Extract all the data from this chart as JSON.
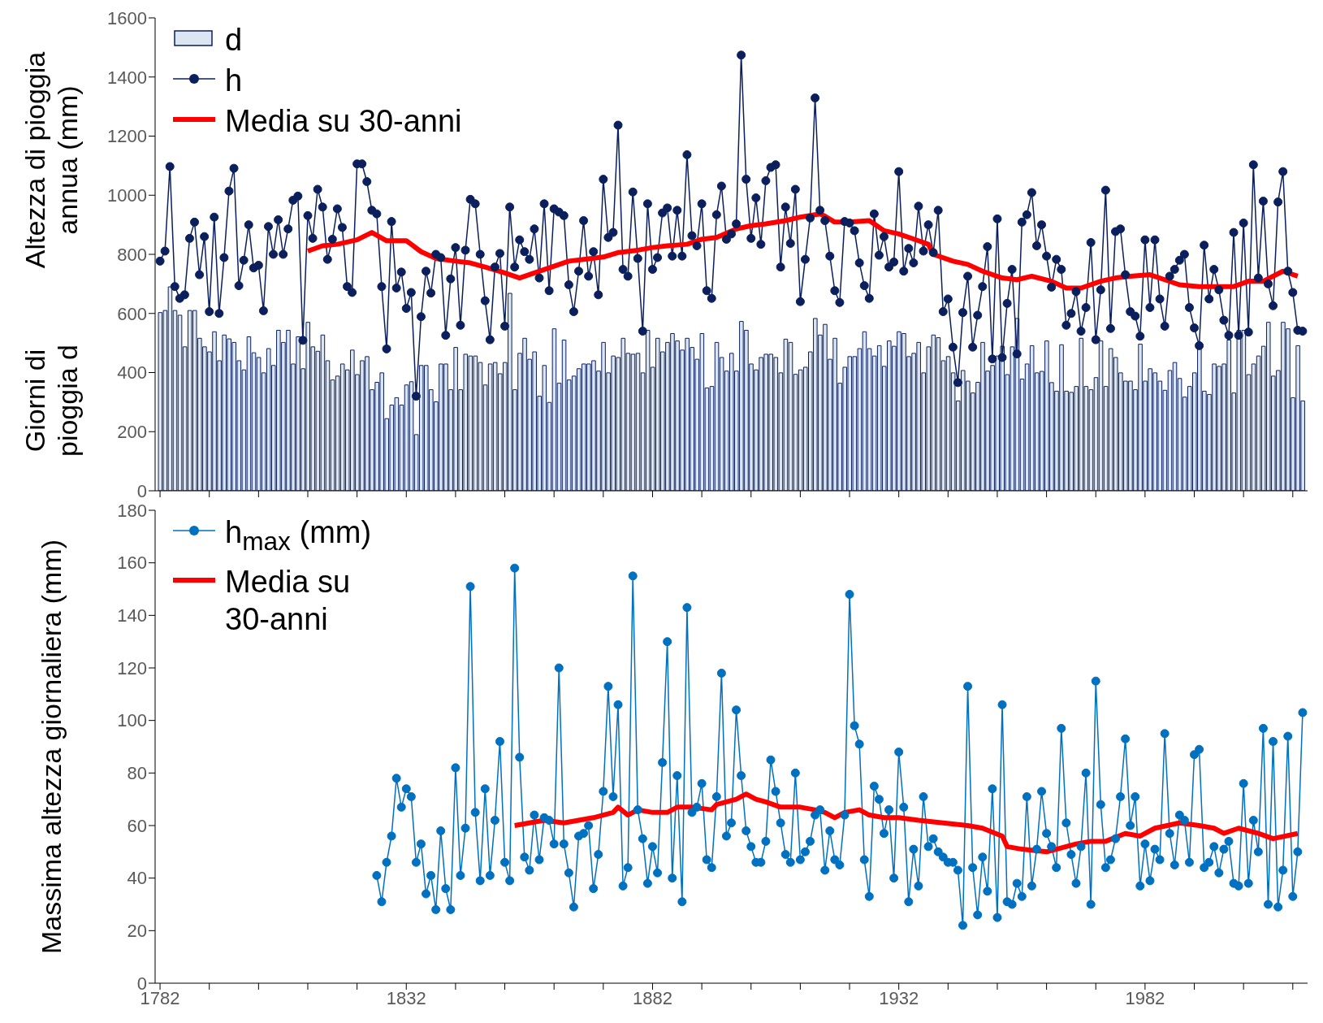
{
  "chart_data": [
    {
      "type": "bar",
      "ylabel": "Altezza di pioggia annua (mm)",
      "annotations": [
        "Giorni di pioggia d"
      ],
      "ylim": [
        0,
        1600
      ],
      "yticks": [
        0,
        200,
        400,
        600,
        800,
        1000,
        1200,
        1400,
        1600
      ],
      "xlim": [
        1781,
        2015
      ],
      "xticks": [
        1782,
        {
          "value": 1792,
          "label": null
        },
        {
          "value": 1802,
          "label": null
        },
        {
          "value": 1812,
          "label": null
        },
        {
          "value": 1822,
          "label": null
        },
        1832,
        {
          "value": 1842,
          "label": null
        },
        {
          "value": 1852,
          "label": null
        },
        {
          "value": 1862,
          "label": null
        },
        {
          "value": 1872,
          "label": null
        },
        1882,
        {
          "value": 1892,
          "label": null
        },
        {
          "value": 1902,
          "label": null
        },
        {
          "value": 1912,
          "label": null
        },
        {
          "value": 1922,
          "label": null
        },
        1932,
        {
          "value": 1942,
          "label": null
        },
        {
          "value": 1952,
          "label": null
        },
        {
          "value": 1962,
          "label": null
        },
        {
          "value": 1972,
          "label": null
        },
        1982,
        {
          "value": 1992,
          "label": null
        },
        {
          "value": 2002,
          "label": null
        },
        {
          "value": 2012,
          "label": null
        }
      ],
      "tick_labels": "y",
      "legend": "top left",
      "marker": "circle",
      "x": [
        1782,
        1783,
        1784,
        1785,
        1786,
        1787,
        1788,
        1789,
        1790,
        1791,
        1792,
        1793,
        1794,
        1795,
        1796,
        1797,
        1798,
        1799,
        1800,
        1801,
        1802,
        1803,
        1804,
        1805,
        1806,
        1807,
        1808,
        1809,
        1810,
        1811,
        1812,
        1813,
        1814,
        1815,
        1816,
        1817,
        1818,
        1819,
        1820,
        1821,
        1822,
        1823,
        1824,
        1825,
        1826,
        1827,
        1828,
        1829,
        1830,
        1831,
        1832,
        1833,
        1834,
        1835,
        1836,
        1837,
        1838,
        1839,
        1840,
        1841,
        1842,
        1843,
        1844,
        1845,
        1846,
        1847,
        1848,
        1849,
        1850,
        1851,
        1852,
        1853,
        1854,
        1855,
        1856,
        1857,
        1858,
        1859,
        1860,
        1861,
        1862,
        1863,
        1864,
        1865,
        1866,
        1867,
        1868,
        1869,
        1870,
        1871,
        1872,
        1873,
        1874,
        1875,
        1876,
        1877,
        1878,
        1879,
        1880,
        1881,
        1882,
        1883,
        1884,
        1885,
        1886,
        1887,
        1888,
        1889,
        1890,
        1891,
        1892,
        1893,
        1894,
        1895,
        1896,
        1897,
        1898,
        1899,
        1900,
        1901,
        1902,
        1903,
        1904,
        1905,
        1906,
        1907,
        1908,
        1909,
        1910,
        1911,
        1912,
        1913,
        1914,
        1915,
        1916,
        1917,
        1918,
        1919,
        1920,
        1921,
        1922,
        1923,
        1924,
        1925,
        1926,
        1927,
        1928,
        1929,
        1930,
        1931,
        1932,
        1933,
        1934,
        1935,
        1936,
        1937,
        1938,
        1939,
        1940,
        1941,
        1942,
        1943,
        1944,
        1945,
        1946,
        1947,
        1948,
        1949,
        1950,
        1951,
        1952,
        1953,
        1954,
        1955,
        1956,
        1957,
        1958,
        1959,
        1960,
        1961,
        1962,
        1963,
        1964,
        1965,
        1966,
        1967,
        1968,
        1969,
        1970,
        1971,
        1972,
        1973,
        1974,
        1975,
        1976,
        1977,
        1978,
        1979,
        1980,
        1981,
        1982,
        1983,
        1984,
        1985,
        1986,
        1987,
        1988,
        1989,
        1990,
        1991,
        1992,
        1993,
        1994,
        1995,
        1996,
        1997,
        1998,
        1999,
        2000,
        2001,
        2002,
        2003,
        2004,
        2005,
        2006,
        2007,
        2008,
        2009,
        2010,
        2011,
        2012,
        2013,
        2014
      ],
      "series": [
        {
          "name": "d",
          "color": "#dce6f2",
          "values": [
            603,
            610,
            690,
            610,
            594,
            487,
            610,
            610,
            516,
            487,
            470,
            538,
            440,
            527,
            514,
            502,
            440,
            409,
            521,
            467,
            451,
            399,
            481,
            424,
            543,
            502,
            543,
            429,
            521,
            413,
            570,
            487,
            472,
            527,
            440,
            375,
            388,
            429,
            409,
            476,
            393,
            440,
            454,
            342,
            367,
            399,
            244,
            290,
            315,
            290,
            358,
            369,
            190,
            424,
            424,
            342,
            301,
            429,
            429,
            342,
            485,
            342,
            462,
            456,
            456,
            434,
            358,
            429,
            434,
            396,
            434,
            668,
            342,
            465,
            516,
            445,
            470,
            320,
            424,
            299,
            548,
            364,
            510,
            375,
            388,
            413,
            429,
            429,
            440,
            405,
            502,
            399,
            456,
            451,
            516,
            465,
            462,
            465,
            399,
            543,
            418,
            516,
            470,
            502,
            532,
            507,
            476,
            516,
            485,
            445,
            532,
            348,
            353,
            502,
            451,
            405,
            465,
            405,
            573,
            543,
            429,
            409,
            451,
            462,
            462,
            451,
            399,
            513,
            502,
            394,
            409,
            418,
            470,
            583,
            527,
            563,
            445,
            516,
            364,
            418,
            454,
            454,
            481,
            538,
            481,
            456,
            491,
            421,
            507,
            489,
            538,
            532,
            454,
            465,
            502,
            399,
            487,
            527,
            518,
            440,
            454,
            399,
            304,
            407,
            371,
            331,
            367,
            502,
            405,
            424,
            456,
            489,
            393,
            487,
            583,
            378,
            429,
            491,
            399,
            404,
            507,
            366,
            337,
            494,
            337,
            333,
            353,
            516,
            353,
            342,
            383,
            507,
            353,
            481,
            451,
            399,
            371,
            371,
            342,
            496,
            371,
            413,
            399,
            371,
            340,
            407,
            434,
            380,
            317,
            353,
            399,
            491,
            337,
            326,
            429,
            421,
            429,
            510,
            331,
            543,
            543,
            393,
            429,
            456,
            489,
            570,
            388,
            407,
            570,
            548,
            315,
            491,
            304
          ]
        },
        {
          "name": "h",
          "type": "line",
          "color": "#0b1f5c",
          "values": [
            777,
            811,
            1097,
            691,
            651,
            663,
            854,
            909,
            731,
            860,
            606,
            926,
            600,
            789,
            1014,
            1091,
            694,
            780,
            900,
            754,
            763,
            609,
            894,
            800,
            917,
            800,
            886,
            983,
            997,
            509,
            931,
            854,
            1020,
            960,
            783,
            851,
            954,
            891,
            691,
            671,
            1106,
            1106,
            1046,
            949,
            937,
            691,
            480,
            911,
            686,
            740,
            617,
            671,
            320,
            589,
            743,
            669,
            800,
            789,
            526,
            717,
            823,
            560,
            814,
            986,
            971,
            800,
            643,
            511,
            757,
            803,
            557,
            960,
            757,
            849,
            809,
            783,
            886,
            720,
            971,
            677,
            954,
            943,
            931,
            697,
            606,
            743,
            914,
            726,
            809,
            663,
            1054,
            857,
            874,
            1237,
            749,
            726,
            1011,
            786,
            540,
            971,
            749,
            789,
            940,
            957,
            794,
            949,
            794,
            1137,
            863,
            829,
            971,
            677,
            651,
            934,
            1031,
            851,
            869,
            903,
            1474,
            1054,
            854,
            991,
            834,
            1049,
            1094,
            1103,
            757,
            960,
            837,
            1020,
            640,
            783,
            923,
            1329,
            949,
            914,
            794,
            677,
            637,
            911,
            906,
            880,
            771,
            694,
            651,
            937,
            797,
            860,
            757,
            774,
            1080,
            743,
            820,
            771,
            963,
            811,
            900,
            806,
            949,
            606,
            649,
            486,
            366,
            603,
            726,
            486,
            594,
            691,
            826,
            446,
            920,
            451,
            634,
            749,
            463,
            909,
            934,
            1009,
            829,
            900,
            794,
            689,
            783,
            749,
            560,
            600,
            674,
            540,
            620,
            840,
            511,
            680,
            1017,
            549,
            877,
            886,
            731,
            606,
            591,
            523,
            849,
            620,
            849,
            649,
            557,
            726,
            749,
            780,
            800,
            620,
            551,
            491,
            831,
            649,
            749,
            680,
            577,
            526,
            874,
            526,
            906,
            537,
            1103,
            720,
            980,
            700,
            626,
            977,
            1080,
            743,
            671,
            543,
            540
          ]
        },
        {
          "name": "Media su 30-anni",
          "type": "line",
          "color": "#ff0000",
          "marker": "none",
          "x": [
            1812,
            1815,
            1818,
            1822,
            1825,
            1828,
            1832,
            1833,
            1835,
            1838,
            1842,
            1845,
            1848,
            1852,
            1855,
            1858,
            1862,
            1865,
            1868,
            1872,
            1875,
            1879,
            1882,
            1885,
            1889,
            1892,
            1895,
            1899,
            1902,
            1905,
            1909,
            1912,
            1916,
            1917,
            1919,
            1922,
            1926,
            1927,
            1929,
            1932,
            1936,
            1938,
            1939,
            1943,
            1946,
            1949,
            1953,
            1956,
            1959,
            1963,
            1966,
            1969,
            1973,
            1976,
            1979,
            1983,
            1986,
            1989,
            1993,
            1996,
            2000,
            2003,
            2006,
            2010,
            2013
          ],
          "values": [
            811,
            829,
            834,
            849,
            874,
            846,
            846,
            834,
            809,
            786,
            777,
            771,
            757,
            737,
            720,
            737,
            760,
            777,
            783,
            791,
            806,
            814,
            823,
            829,
            834,
            851,
            857,
            886,
            897,
            903,
            914,
            926,
            937,
            929,
            909,
            909,
            914,
            903,
            880,
            869,
            846,
            834,
            800,
            777,
            766,
            743,
            720,
            714,
            726,
            709,
            686,
            686,
            709,
            720,
            726,
            731,
            714,
            697,
            691,
            691,
            691,
            709,
            709,
            743,
            726
          ]
        }
      ]
    },
    {
      "type": "line",
      "ylabel": "Massima altezza giornaliera (mm)",
      "ylim": [
        0,
        180
      ],
      "yticks": [
        0,
        20,
        40,
        60,
        80,
        100,
        120,
        140,
        160,
        180
      ],
      "xlim": [
        1781,
        2015
      ],
      "xticks": [
        1782,
        {
          "value": 1792,
          "label": null
        },
        {
          "value": 1802,
          "label": null
        },
        {
          "value": 1812,
          "label": null
        },
        {
          "value": 1822,
          "label": null
        },
        1832,
        {
          "value": 1842,
          "label": null
        },
        {
          "value": 1852,
          "label": null
        },
        {
          "value": 1862,
          "label": null
        },
        {
          "value": 1872,
          "label": null
        },
        1882,
        {
          "value": 1892,
          "label": null
        },
        {
          "value": 1902,
          "label": null
        },
        {
          "value": 1912,
          "label": null
        },
        {
          "value": 1922,
          "label": null
        },
        1932,
        {
          "value": 1942,
          "label": null
        },
        {
          "value": 1952,
          "label": null
        },
        {
          "value": 1962,
          "label": null
        },
        {
          "value": 1972,
          "label": null
        },
        1982,
        {
          "value": 1992,
          "label": null
        },
        {
          "value": 2002,
          "label": null
        },
        {
          "value": 2012,
          "label": null
        }
      ],
      "legend": "top left",
      "marker": "circle",
      "x": [
        1826,
        1827,
        1828,
        1829,
        1830,
        1831,
        1832,
        1833,
        1834,
        1835,
        1836,
        1837,
        1838,
        1839,
        1840,
        1841,
        1842,
        1843,
        1844,
        1845,
        1846,
        1847,
        1848,
        1849,
        1850,
        1851,
        1852,
        1853,
        1854,
        1855,
        1856,
        1857,
        1858,
        1859,
        1860,
        1861,
        1862,
        1863,
        1864,
        1865,
        1866,
        1867,
        1868,
        1869,
        1870,
        1871,
        1872,
        1873,
        1874,
        1875,
        1876,
        1877,
        1878,
        1879,
        1880,
        1881,
        1882,
        1883,
        1884,
        1885,
        1886,
        1887,
        1888,
        1889,
        1890,
        1891,
        1892,
        1893,
        1894,
        1895,
        1896,
        1897,
        1898,
        1899,
        1900,
        1901,
        1902,
        1903,
        1904,
        1905,
        1906,
        1907,
        1908,
        1909,
        1910,
        1911,
        1912,
        1913,
        1914,
        1915,
        1916,
        1917,
        1918,
        1919,
        1920,
        1921,
        1922,
        1923,
        1924,
        1925,
        1926,
        1927,
        1928,
        1929,
        1930,
        1931,
        1932,
        1933,
        1934,
        1935,
        1936,
        1937,
        1938,
        1939,
        1940,
        1941,
        1942,
        1943,
        1944,
        1945,
        1946,
        1947,
        1948,
        1949,
        1950,
        1951,
        1952,
        1953,
        1954,
        1955,
        1956,
        1957,
        1958,
        1959,
        1960,
        1961,
        1962,
        1963,
        1964,
        1965,
        1966,
        1967,
        1968,
        1969,
        1970,
        1971,
        1972,
        1973,
        1974,
        1975,
        1976,
        1977,
        1978,
        1979,
        1980,
        1981,
        1982,
        1983,
        1984,
        1985,
        1986,
        1987,
        1988,
        1989,
        1990,
        1991,
        1992,
        1993,
        1994,
        1995,
        1996,
        1997,
        1998,
        1999,
        2000,
        2001,
        2002,
        2003,
        2004,
        2005,
        2006,
        2007,
        2008,
        2009,
        2010,
        2011,
        2012,
        2013,
        2014
      ],
      "series": [
        {
          "name": "h$_{max}$ (mm)",
          "color": "#0070c0",
          "values": [
            41,
            31,
            46,
            56,
            78,
            67,
            74,
            71,
            46,
            53,
            34,
            41,
            28,
            58,
            36,
            28,
            82,
            41,
            59,
            151,
            65,
            39,
            74,
            41,
            62,
            92,
            46,
            39,
            158,
            86,
            48,
            43,
            64,
            47,
            63,
            62,
            53,
            120,
            53,
            42,
            29,
            56,
            57,
            60,
            36,
            49,
            73,
            113,
            71,
            106,
            37,
            44,
            155,
            66,
            55,
            38,
            52,
            42,
            84,
            130,
            40,
            79,
            31,
            143,
            65,
            67,
            76,
            47,
            44,
            71,
            118,
            56,
            61,
            104,
            79,
            58,
            52,
            46,
            46,
            54,
            85,
            73,
            61,
            49,
            46,
            80,
            47,
            50,
            54,
            64,
            66,
            43,
            58,
            47,
            45,
            64,
            148,
            98,
            91,
            47,
            33,
            75,
            70,
            57,
            66,
            40,
            88,
            67,
            31,
            51,
            37,
            71,
            52,
            55,
            50,
            48,
            46,
            46,
            43,
            22,
            113,
            44,
            26,
            48,
            35,
            74,
            25,
            106,
            31,
            30,
            38,
            33,
            71,
            37,
            51,
            73,
            57,
            52,
            44,
            97,
            61,
            49,
            38,
            52,
            80,
            30,
            115,
            68,
            44,
            47,
            55,
            71,
            93,
            60,
            71,
            37,
            53,
            39,
            51,
            47,
            95,
            57,
            45,
            64,
            62,
            46,
            87,
            89,
            44,
            46,
            52,
            42,
            51,
            54,
            38,
            37,
            76,
            38,
            62,
            50,
            97,
            30,
            92,
            29,
            43,
            94,
            33,
            50,
            103
          ]
        },
        {
          "name": "Media su 30-anni",
          "color": "#ff0000",
          "marker": "none",
          "x": [
            1854,
            1857,
            1860,
            1864,
            1867,
            1870,
            1874,
            1875,
            1877,
            1879,
            1882,
            1885,
            1887,
            1890,
            1894,
            1895,
            1899,
            1901,
            1903,
            1905,
            1908,
            1912,
            1915,
            1917,
            1919,
            1921,
            1924,
            1926,
            1929,
            1932,
            1936,
            1941,
            1946,
            1949,
            1953,
            1954,
            1957,
            1962,
            1968,
            1971,
            1974,
            1978,
            1981,
            1984,
            1989,
            1993,
            1996,
            1998,
            2001,
            2005,
            2008,
            2013
          ],
          "values": [
            60,
            61,
            62,
            61,
            62,
            63,
            65,
            67,
            64,
            66,
            65,
            65,
            67,
            67,
            66,
            68,
            70,
            72,
            70,
            69,
            67,
            67,
            66,
            65,
            63,
            65,
            66,
            64,
            63,
            63,
            62,
            61,
            60,
            59,
            56,
            52,
            51,
            50,
            53,
            54,
            54,
            57,
            56,
            59,
            61,
            60,
            59,
            57,
            59,
            57,
            55,
            57
          ]
        }
      ]
    }
  ]
}
